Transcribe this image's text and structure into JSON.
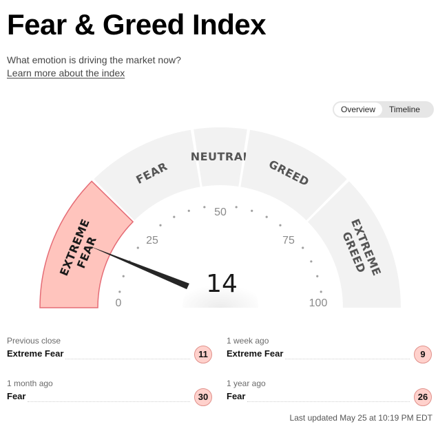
{
  "header": {
    "title": "Fear & Greed Index",
    "subtitle": "What emotion is driving the market now?",
    "learn_more_link": "Learn more about the index"
  },
  "view_toggle": {
    "options": [
      "Overview",
      "Timeline"
    ],
    "selected": "Overview"
  },
  "gauge": {
    "score": 14,
    "min": 0,
    "max": 100,
    "score_label": "14",
    "segments": [
      {
        "label_lines": [
          "EXTREME",
          "FEAR"
        ],
        "from": 0,
        "to": 25,
        "active": true
      },
      {
        "label_lines": [
          "FEAR"
        ],
        "from": 25,
        "to": 45,
        "active": false
      },
      {
        "label_lines": [
          "NEUTRAL"
        ],
        "from": 45,
        "to": 55,
        "active": false
      },
      {
        "label_lines": [
          "GREED"
        ],
        "from": 55,
        "to": 75,
        "active": false
      },
      {
        "label_lines": [
          "EXTREME",
          "GREED"
        ],
        "from": 75,
        "to": 100,
        "active": false
      }
    ],
    "tick_labels": [
      "0",
      "25",
      "50",
      "75",
      "100"
    ],
    "colors": {
      "segment": "#f2f2f2",
      "active_segment": "#ffc4bd",
      "active_border": "#e56b75",
      "needle": "#262626",
      "dots": "#a0a0a0"
    }
  },
  "stats": [
    {
      "label": "Previous close",
      "value": "Extreme Fear",
      "score": "11"
    },
    {
      "label": "1 week ago",
      "value": "Extreme Fear",
      "score": "9"
    },
    {
      "label": "1 month ago",
      "value": "Fear",
      "score": "30"
    },
    {
      "label": "1 year ago",
      "value": "Fear",
      "score": "26"
    }
  ],
  "footer": {
    "last_updated": "Last updated May 25 at 10:19 PM EDT"
  }
}
